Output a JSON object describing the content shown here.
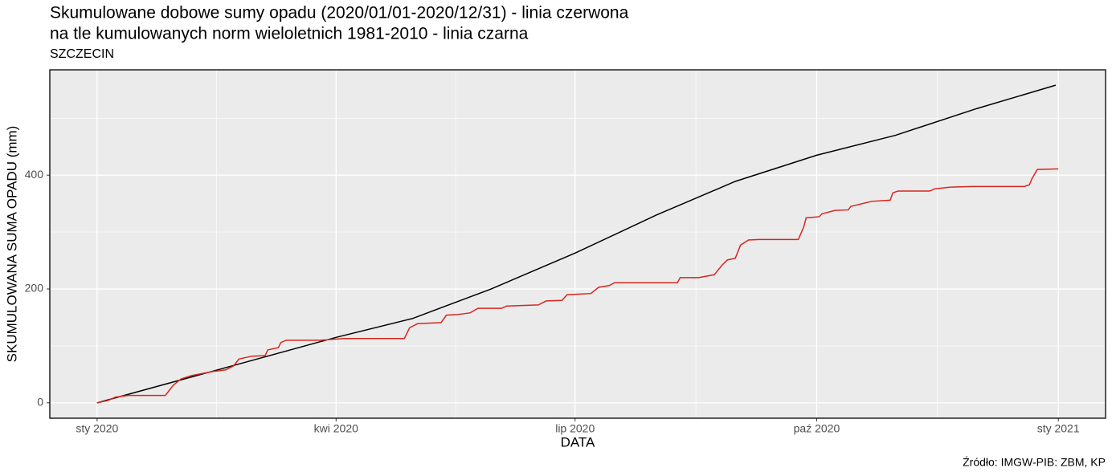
{
  "chart_data": {
    "type": "line",
    "title": [
      "Skumulowane dobowe sumy opadu (2020/01/01-2020/12/31) - linia czerwona",
      "na tle kumulowanych norm wieloletnich 1981-2010 - linia czarna"
    ],
    "subtitle": "SZCZECIN",
    "x_label": "DATA",
    "y_label": "SKUMULOWANA SUMA OPADU (mm)",
    "caption": "Źródło: IMGW-PIB: ZBM, KP",
    "xlim": [
      -18,
      384
    ],
    "ylim": [
      -27,
      585
    ],
    "xticks": [
      {
        "value": 0,
        "label": "sty 2020"
      },
      {
        "value": 91,
        "label": "kwi 2020"
      },
      {
        "value": 182,
        "label": "lip 2020"
      },
      {
        "value": 274,
        "label": "paź 2020"
      },
      {
        "value": 366,
        "label": "sty 2021"
      }
    ],
    "yticks": [
      0,
      200,
      400
    ],
    "x_minor_grid": [
      45.5,
      136.5,
      228,
      320
    ],
    "y_minor_grid": [
      100,
      300,
      500
    ],
    "grid": true,
    "series": [
      {
        "color": "#000000",
        "x": [
          0,
          91,
          120,
          150,
          182,
          213,
          243,
          274,
          304,
          335,
          365
        ],
        "values": [
          0,
          115,
          148,
          200,
          263,
          330,
          389,
          435,
          470,
          517,
          558
        ]
      },
      {
        "color": "#d7261e",
        "x": [
          0,
          4,
          7,
          12,
          26,
          29,
          32,
          36,
          44,
          49,
          52,
          54,
          59,
          64,
          65,
          69,
          70,
          72,
          85,
          94,
          117,
          119,
          122,
          131,
          133,
          137,
          142,
          145,
          154,
          156,
          168,
          171,
          177,
          179,
          188,
          191,
          195,
          197,
          201,
          221,
          222,
          229,
          235,
          238,
          240,
          243,
          245,
          248,
          252,
          267,
          269,
          270,
          275,
          276,
          281,
          286,
          287,
          295,
          302,
          303,
          305,
          317,
          319,
          325,
          333,
          353,
          355,
          356,
          358,
          366
        ],
        "values": [
          0,
          4,
          10,
          13,
          13,
          31,
          42,
          48,
          55,
          58,
          65,
          77,
          82,
          83,
          93,
          97,
          106,
          110,
          110,
          113,
          113,
          132,
          139,
          141,
          154,
          155,
          158,
          166,
          166,
          170,
          172,
          179,
          180,
          190,
          192,
          203,
          206,
          211,
          211,
          211,
          220,
          220,
          225,
          242,
          251,
          254,
          277,
          286,
          287,
          287,
          308,
          325,
          327,
          332,
          338,
          339,
          345,
          354,
          356,
          369,
          372,
          372,
          376,
          379,
          380,
          380,
          383,
          394,
          410,
          411
        ]
      }
    ]
  }
}
